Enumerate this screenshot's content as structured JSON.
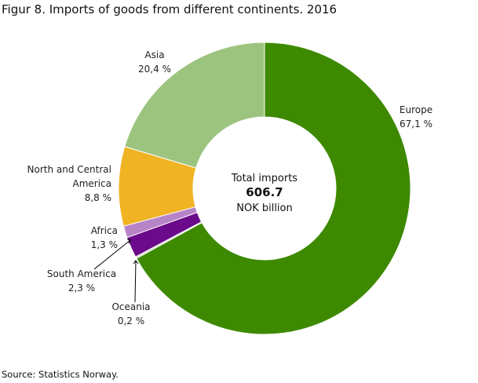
{
  "chart_data": {
    "type": "donut",
    "title": "Figur 8. Imports  of goods from different continents. 2016",
    "categories": [
      "Europe",
      "Oceania",
      "South America",
      "Africa",
      "North and Central America",
      "Asia"
    ],
    "values": [
      67.1,
      0.2,
      2.3,
      1.3,
      8.8,
      20.4
    ],
    "value_labels": [
      "67,1  %",
      "0,2  %",
      "2,3  %",
      "1,3  %",
      "8,8  %",
      "20,4  %"
    ],
    "colors": [
      "#3d8a00",
      "#c9d9b8",
      "#6b0a8a",
      "#b784c8",
      "#efb323",
      "#9dc47f"
    ],
    "center_title": "Total imports",
    "center_value": 606.7,
    "center_unit": "NOK billion",
    "source": "Source: Statistics Norway."
  }
}
